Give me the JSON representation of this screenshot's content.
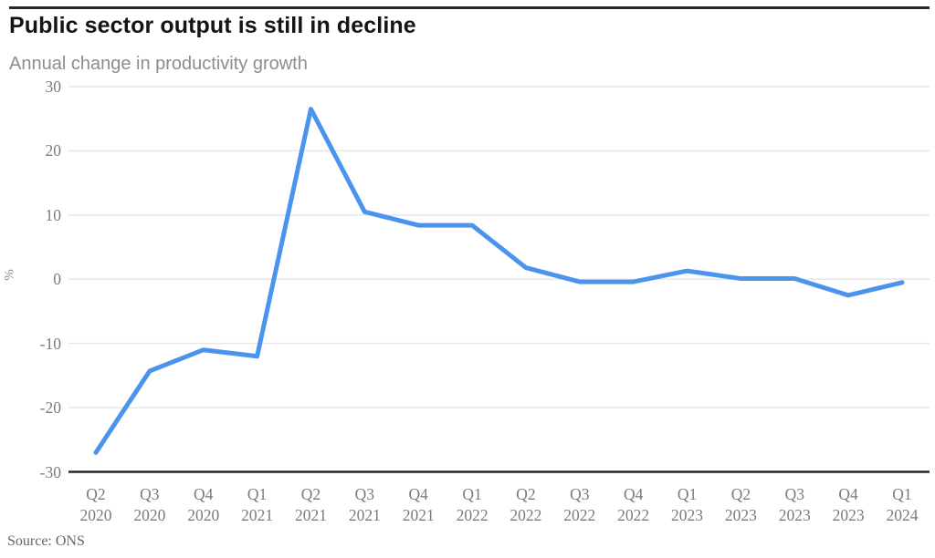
{
  "colors": {
    "line": "#4b94ee",
    "grid": "#e6e6e6",
    "axis": "#26262b",
    "tick_label": "#7b7b7b",
    "title": "#141414",
    "subtitle": "#8d8d8d"
  },
  "source": "Source: ONS",
  "chart_data": {
    "type": "line",
    "title": "Public sector output is still in decline",
    "subtitle": "Annual change in productivity growth",
    "ylabel": "%",
    "xlabel": "",
    "ylim": [
      -30,
      30
    ],
    "yticks": [
      30,
      20,
      10,
      0,
      -10,
      -20,
      -30
    ],
    "grid": true,
    "legend": "none",
    "categories": [
      "Q2 2020",
      "Q3 2020",
      "Q4 2020",
      "Q1 2021",
      "Q2 2021",
      "Q3 2021",
      "Q4 2021",
      "Q1 2022",
      "Q2 2022",
      "Q3 2022",
      "Q4 2022",
      "Q1 2023",
      "Q2 2023",
      "Q3 2023",
      "Q4 2023",
      "Q1 2024"
    ],
    "values": [
      -27,
      -14.3,
      -11,
      -12,
      26.5,
      10.5,
      8.4,
      8.4,
      1.8,
      -0.4,
      -0.4,
      1.3,
      0.1,
      0.1,
      -2.5,
      -0.5
    ],
    "source": "Source: ONS"
  }
}
